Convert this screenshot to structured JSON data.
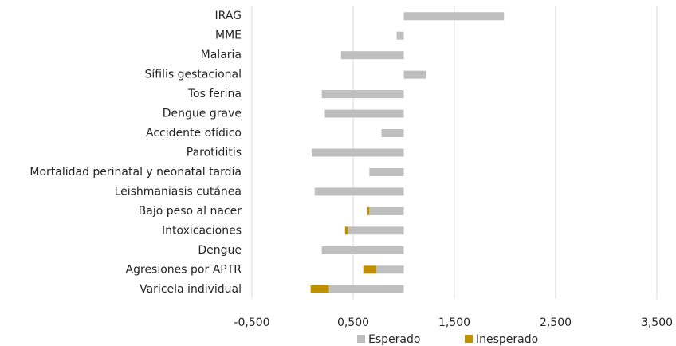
{
  "chart_data": {
    "type": "hbar-stacked",
    "categories": [
      "IRAG",
      "MME",
      "Malaria",
      "Sífilis gestacional",
      "Tos ferina",
      "Dengue grave",
      "Accidente ofídico",
      "Parotiditis",
      "Mortalidad perinatal y neonatal tardía",
      "Leishmaniasis cutánea",
      "Bajo peso al nacer",
      "Intoxicaciones",
      "Dengue",
      "Agresiones por APTR",
      "Varicela individual"
    ],
    "series": [
      {
        "name": "Esperado",
        "color": "#bfbfbf",
        "values": [
          1.99,
          0.93,
          0.38,
          1.22,
          0.19,
          0.22,
          0.78,
          0.09,
          0.66,
          0.12,
          0.66,
          0.45,
          0.19,
          0.73,
          0.26
        ]
      },
      {
        "name": "Inesperado",
        "color": "#bf9000",
        "values": [
          null,
          null,
          null,
          null,
          null,
          null,
          null,
          null,
          null,
          null,
          -0.02,
          -0.03,
          null,
          -0.13,
          -0.18
        ]
      }
    ],
    "bar_base": 1,
    "xlim": [
      -0.5,
      3.5
    ],
    "xticks": [
      {
        "value": -0.5,
        "label": "-0,500"
      },
      {
        "value": 0.5,
        "label": "0,500"
      },
      {
        "value": 1.5,
        "label": "1,500"
      },
      {
        "value": 2.5,
        "label": "2,500"
      },
      {
        "value": 3.5,
        "label": "3,500"
      }
    ],
    "grid": true
  }
}
